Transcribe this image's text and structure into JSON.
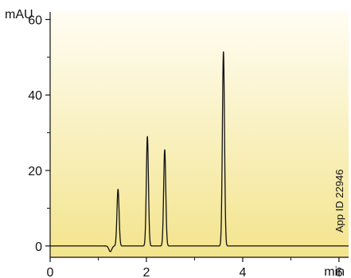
{
  "chart_data": {
    "type": "line",
    "ylabel": "mAU",
    "xlabel": "min",
    "xlim": [
      0,
      6.2
    ],
    "ylim": [
      -3,
      62
    ],
    "x_ticks": [
      0,
      2,
      4,
      6
    ],
    "x_tick_labels": [
      "0",
      "2",
      "4",
      "6"
    ],
    "y_ticks": [
      0,
      20,
      40,
      60
    ],
    "y_tick_labels": [
      "0",
      "20",
      "40",
      "60"
    ],
    "grid": false,
    "legend": "none",
    "annotation": "App ID  22946",
    "baseline": 0,
    "dip": {
      "x": 1.25,
      "y": -1.5
    },
    "peaks": [
      {
        "x": 1.41,
        "y": 15
      },
      {
        "x": 2.02,
        "y": 29
      },
      {
        "x": 2.38,
        "y": 25.5
      },
      {
        "x": 3.6,
        "y": 51.5
      }
    ],
    "colors": {
      "background_top": "#fffdf3",
      "background_bottom": "#f3e48c",
      "trace": "#111111",
      "axis": "#111111"
    }
  }
}
